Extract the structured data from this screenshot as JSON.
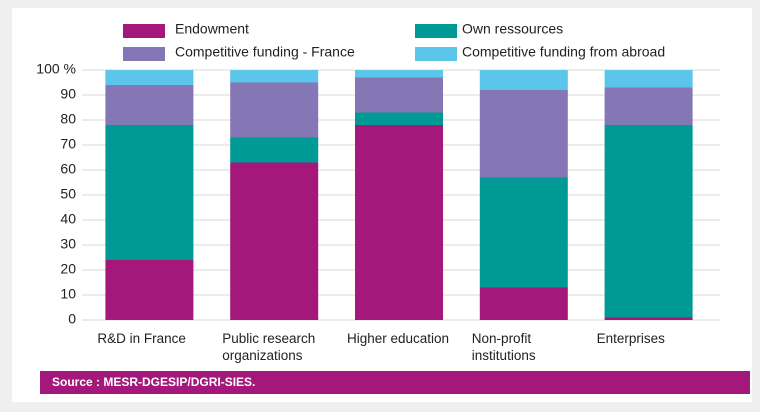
{
  "chart_data": {
    "type": "stacked_bar",
    "categories": [
      "R&D in France",
      "Public research organizations",
      "Higher education",
      "Non-profit institutions",
      "Enterprises"
    ],
    "series": [
      {
        "name": "Endowment",
        "color": "#a3187a",
        "values": [
          24,
          63,
          78,
          13,
          1
        ]
      },
      {
        "name": "Own ressources",
        "color": "#009a94",
        "values": [
          54,
          10,
          5,
          44,
          77
        ]
      },
      {
        "name": "Competitive funding - France",
        "color": "#8576b5",
        "values": [
          16,
          22,
          14,
          35,
          15
        ]
      },
      {
        "name": "Competitive funding from abroad",
        "color": "#5bc5ea",
        "values": [
          6,
          5,
          3,
          8,
          7
        ]
      }
    ],
    "ylim": [
      0,
      100
    ],
    "yticks": [
      0,
      10,
      20,
      30,
      40,
      50,
      60,
      70,
      80,
      90,
      {
        "value": 100,
        "label": "100 %"
      }
    ],
    "grid": true,
    "source": "Source : MESR-DGESIP/DGRI-SIES."
  }
}
